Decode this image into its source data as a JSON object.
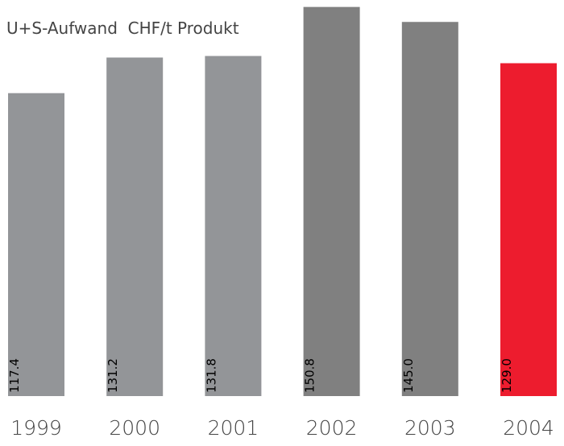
{
  "chart_data": {
    "type": "bar",
    "title": "U+S-Aufwand  CHF/t Produkt",
    "categories": [
      "1999",
      "2000",
      "2001",
      "2002",
      "2003",
      "2004"
    ],
    "values": [
      117.4,
      131.2,
      131.8,
      150.8,
      145.0,
      129.0
    ],
    "value_labels": [
      "117.4",
      "131.2",
      "131.8",
      "150.8",
      "145.0",
      "129.0"
    ],
    "colors": [
      "#939598",
      "#939598",
      "#939598",
      "#808080",
      "#808080",
      "#ed1c2e"
    ],
    "ylim": [
      0,
      151
    ]
  }
}
